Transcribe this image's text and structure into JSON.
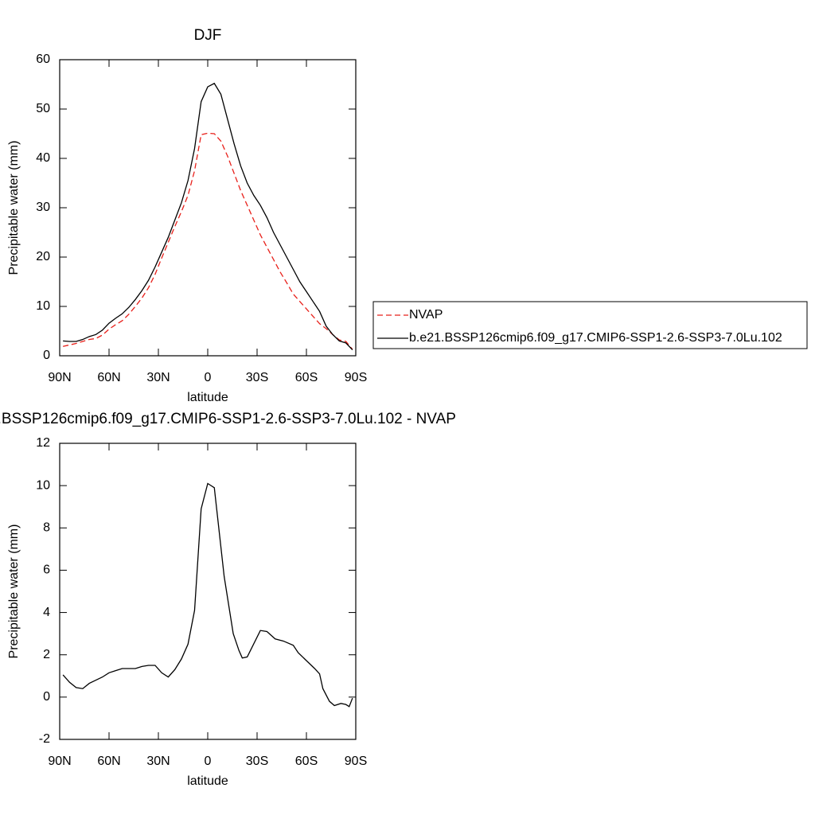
{
  "chart_data": [
    {
      "type": "line",
      "title": "DJF",
      "xlabel": "latitude",
      "ylabel": "Precipitable water (mm)",
      "x": [
        88,
        84,
        80,
        76,
        72,
        68,
        64,
        60,
        56,
        52,
        48,
        44,
        40,
        36,
        32,
        28,
        24,
        20,
        16,
        12,
        8,
        4,
        0,
        -4,
        -8,
        -12,
        -16,
        -20,
        -24,
        -28,
        -32,
        -36,
        -40,
        -44,
        -48,
        -52,
        -56,
        -60,
        -64,
        -68,
        -72,
        -76,
        -80,
        -84,
        -88
      ],
      "series": [
        {
          "name": "NVAP",
          "color": "#e8201a",
          "dashed": true,
          "values": [
            1.9,
            2.2,
            2.5,
            2.9,
            3.3,
            3.5,
            4.2,
            5.4,
            6.3,
            7.1,
            8.4,
            10.0,
            11.7,
            13.8,
            16.5,
            19.8,
            23.0,
            26.2,
            29.2,
            32.5,
            37.5,
            44.8,
            45.1,
            45.0,
            43.5,
            40.5,
            37.0,
            33.5,
            30.5,
            27.5,
            24.5,
            22.0,
            19.5,
            17.0,
            14.8,
            12.5,
            11.0,
            9.5,
            8.0,
            6.5,
            5.5,
            4.3,
            3.2,
            2.9,
            1.3
          ]
        },
        {
          "name": "b.e21.BSSP126cmip6.f09_g17.CMIP6-SSP1-2.6-SSP3-7.0Lu.102",
          "color": "#000000",
          "dashed": false,
          "values": [
            3.0,
            2.9,
            2.9,
            3.3,
            3.9,
            4.3,
            5.2,
            6.6,
            7.6,
            8.5,
            9.8,
            11.4,
            13.2,
            15.3,
            18.0,
            21.0,
            24.0,
            27.5,
            31.0,
            35.5,
            42.0,
            51.5,
            54.5,
            55.2,
            53.0,
            48.0,
            43.0,
            38.5,
            35.0,
            32.5,
            30.5,
            28.0,
            25.0,
            22.5,
            20.0,
            17.5,
            15.0,
            13.0,
            11.0,
            9.0,
            6.0,
            4.3,
            3.0,
            2.6,
            1.2
          ]
        }
      ],
      "xlim": [
        90,
        -90
      ],
      "xticks": [
        {
          "value": 90,
          "label": "90N"
        },
        {
          "value": 60,
          "label": "60N"
        },
        {
          "value": 30,
          "label": "30N"
        },
        0,
        {
          "value": -30,
          "label": "30S"
        },
        {
          "value": -60,
          "label": "60S"
        },
        {
          "value": -90,
          "label": "90S"
        }
      ],
      "ylim": [
        0,
        60
      ],
      "yticks": [
        0,
        10,
        20,
        30,
        40,
        50,
        60
      ]
    },
    {
      "type": "line",
      "title": "b.e21.BSSP126cmip6.f09_g17.CMIP6-SSP1-2.6-SSP3-7.0Lu.102 - NVAP",
      "xlabel": "latitude",
      "ylabel": "Precipitable water (mm)",
      "x": [
        88,
        84,
        80,
        76,
        72,
        68,
        64,
        60,
        56,
        52,
        48,
        44,
        40,
        36,
        32,
        28,
        24,
        20,
        16,
        12,
        8,
        4,
        0,
        -2,
        -4,
        -10,
        -15.5,
        -19,
        -21,
        -24,
        -32,
        -36,
        -41,
        -46,
        -52,
        -55,
        -65,
        -68,
        -70,
        -74,
        -77,
        -81,
        -84,
        -86,
        -88
      ],
      "series": [
        {
          "color": "#000000",
          "dashed": false,
          "values": [
            1.05,
            0.7,
            0.45,
            0.4,
            0.65,
            0.8,
            0.95,
            1.15,
            1.25,
            1.35,
            1.35,
            1.35,
            1.45,
            1.5,
            1.5,
            1.15,
            0.95,
            1.3,
            1.8,
            2.5,
            4.1,
            8.9,
            10.1,
            10.0,
            9.9,
            5.7,
            3.0,
            2.2,
            1.85,
            1.9,
            3.15,
            3.1,
            2.75,
            2.65,
            2.45,
            2.1,
            1.35,
            1.1,
            0.4,
            -0.2,
            -0.4,
            -0.3,
            -0.35,
            -0.45,
            -0.05
          ]
        }
      ],
      "xlim": [
        90,
        -90
      ],
      "xticks": [
        {
          "value": 90,
          "label": "90N"
        },
        {
          "value": 60,
          "label": "60N"
        },
        {
          "value": 30,
          "label": "30N"
        },
        0,
        {
          "value": -30,
          "label": "30S"
        },
        {
          "value": -60,
          "label": "60S"
        },
        {
          "value": -90,
          "label": "90S"
        }
      ],
      "ylim": [
        -2,
        12
      ],
      "yticks": [
        -2,
        0,
        2,
        4,
        6,
        8,
        10,
        12
      ]
    }
  ]
}
